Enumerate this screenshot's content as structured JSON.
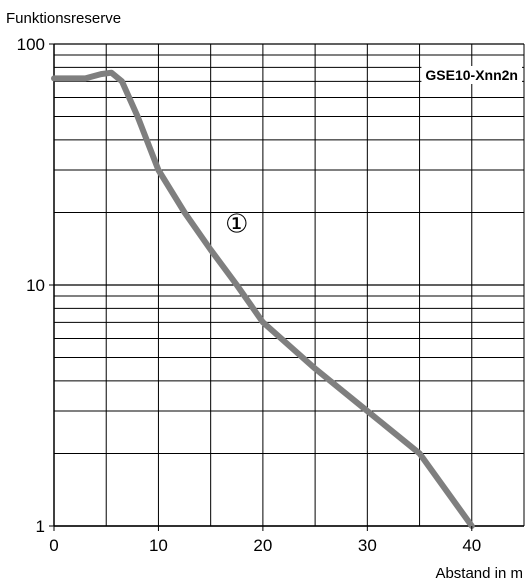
{
  "chart_data": {
    "type": "line",
    "title": "",
    "xlabel": "Abstand in m",
    "ylabel": "Funktionsreserve",
    "xlim": [
      0,
      45
    ],
    "ylim": [
      1,
      100
    ],
    "yscale": "log",
    "grid": true,
    "x_ticks": [
      0,
      10,
      20,
      30,
      40
    ],
    "x_tick_labels": [
      "0",
      "10",
      "20",
      "30",
      "40"
    ],
    "y_ticks": [
      1,
      10,
      100
    ],
    "y_tick_labels": [
      "1",
      "10",
      "100"
    ],
    "series": [
      {
        "name": "",
        "color": "#7f7f7f",
        "x": [
          0,
          3,
          4.5,
          5.5,
          6.5,
          8,
          10,
          12.5,
          15,
          17.5,
          20,
          25,
          30,
          35,
          40
        ],
        "y": [
          72,
          72,
          75,
          76,
          70,
          50,
          30,
          20,
          14,
          10,
          7,
          4.5,
          3,
          2,
          1
        ]
      }
    ],
    "annotations": [
      {
        "text": "GSE10-Xnn2n",
        "position": "top-right"
      },
      {
        "text": "①",
        "x": 17.5,
        "y": 18
      }
    ]
  }
}
